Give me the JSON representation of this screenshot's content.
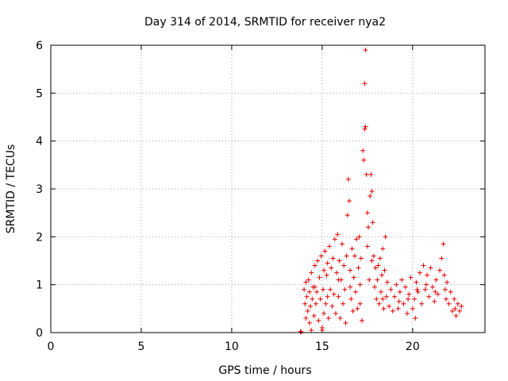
{
  "chart_data": {
    "type": "scatter",
    "title": "Day 314 of 2014, SRMTID for receiver nya2",
    "xlabel": "GPS time / hours",
    "ylabel": "SRMTID / TECUs",
    "xlim": [
      0,
      24
    ],
    "ylim": [
      0,
      6
    ],
    "xticks": [
      0,
      5,
      10,
      15,
      20
    ],
    "yticks": [
      0,
      1,
      2,
      3,
      4,
      5,
      6
    ],
    "grid": true,
    "marker": "+",
    "color": "#e00000",
    "series": [
      {
        "name": "nya2",
        "points": [
          [
            13.8,
            0.02
          ],
          [
            13.85,
            0.01
          ],
          [
            14.0,
            0.9
          ],
          [
            14.05,
            0.6
          ],
          [
            14.1,
            1.05
          ],
          [
            14.1,
            0.3
          ],
          [
            14.15,
            0.75
          ],
          [
            14.2,
            0.45
          ],
          [
            14.25,
            1.1
          ],
          [
            14.3,
            0.2
          ],
          [
            14.3,
            0.85
          ],
          [
            14.35,
            0.55
          ],
          [
            14.4,
            1.25
          ],
          [
            14.4,
            0.05
          ],
          [
            14.45,
            0.7
          ],
          [
            14.5,
            0.95
          ],
          [
            14.55,
            0.35
          ],
          [
            14.6,
            1.4
          ],
          [
            14.65,
            0.6
          ],
          [
            14.7,
            0.85
          ],
          [
            14.75,
            1.5
          ],
          [
            14.8,
            0.25
          ],
          [
            14.85,
            1.15
          ],
          [
            14.9,
            0.7
          ],
          [
            14.95,
            1.6
          ],
          [
            15.0,
            0.1
          ],
          [
            15.0,
            0.05
          ],
          [
            15.05,
            0.9
          ],
          [
            15.1,
            1.3
          ],
          [
            15.1,
            0.4
          ],
          [
            15.15,
            1.7
          ],
          [
            15.2,
            0.6
          ],
          [
            15.25,
            1.2
          ],
          [
            15.3,
            1.45
          ],
          [
            15.35,
            0.3
          ],
          [
            15.4,
            1.8
          ],
          [
            15.45,
            0.9
          ],
          [
            15.5,
            1.35
          ],
          [
            15.55,
            0.55
          ],
          [
            15.6,
            1.55
          ],
          [
            15.65,
            0.8
          ],
          [
            15.7,
            1.95
          ],
          [
            15.75,
            0.4
          ],
          [
            15.8,
            1.25
          ],
          [
            15.85,
            2.05
          ],
          [
            15.9,
            0.75
          ],
          [
            15.95,
            1.5
          ],
          [
            16.0,
            0.3
          ],
          [
            16.05,
            1.1
          ],
          [
            16.1,
            1.85
          ],
          [
            16.15,
            0.6
          ],
          [
            16.2,
            1.4
          ],
          [
            16.25,
            0.9
          ],
          [
            16.3,
            0.2
          ],
          [
            16.35,
            1.6
          ],
          [
            16.4,
            2.45
          ],
          [
            16.45,
            3.2
          ],
          [
            16.5,
            2.75
          ],
          [
            16.55,
            1.3
          ],
          [
            16.6,
            0.7
          ],
          [
            16.65,
            1.75
          ],
          [
            16.7,
            0.45
          ],
          [
            16.75,
            1.15
          ],
          [
            16.8,
            1.6
          ],
          [
            16.85,
            0.85
          ],
          [
            16.9,
            1.95
          ],
          [
            16.95,
            0.5
          ],
          [
            17.0,
            1.35
          ],
          [
            17.05,
            2.0
          ],
          [
            17.1,
            0.6
          ],
          [
            17.15,
            1.55
          ],
          [
            17.2,
            0.25
          ],
          [
            17.25,
            3.8
          ],
          [
            17.3,
            3.6
          ],
          [
            17.35,
            4.25
          ],
          [
            17.35,
            5.2
          ],
          [
            17.4,
            5.9
          ],
          [
            17.4,
            4.3
          ],
          [
            17.45,
            3.3
          ],
          [
            17.5,
            2.5
          ],
          [
            17.5,
            1.8
          ],
          [
            17.55,
            2.2
          ],
          [
            17.6,
            1.1
          ],
          [
            17.65,
            2.85
          ],
          [
            17.7,
            3.3
          ],
          [
            17.75,
            2.95
          ],
          [
            17.8,
            2.3
          ],
          [
            17.85,
            1.6
          ],
          [
            17.9,
            0.95
          ],
          [
            17.95,
            1.35
          ],
          [
            18.0,
            0.7
          ],
          [
            18.05,
            1.1
          ],
          [
            18.1,
            1.4
          ],
          [
            18.15,
            0.6
          ],
          [
            18.2,
            1.55
          ],
          [
            18.25,
            0.85
          ],
          [
            18.3,
            1.2
          ],
          [
            18.35,
            1.75
          ],
          [
            18.4,
            0.5
          ],
          [
            18.45,
            1.3
          ],
          [
            18.5,
            2.0
          ],
          [
            18.55,
            0.75
          ],
          [
            18.6,
            1.05
          ],
          [
            18.7,
            0.55
          ],
          [
            18.8,
            0.9
          ],
          [
            18.9,
            0.45
          ],
          [
            19.0,
            0.75
          ],
          [
            19.1,
            1.0
          ],
          [
            19.2,
            0.5
          ],
          [
            19.3,
            0.85
          ],
          [
            19.4,
            1.1
          ],
          [
            19.5,
            0.6
          ],
          [
            19.6,
            0.95
          ],
          [
            19.7,
            0.4
          ],
          [
            19.8,
            0.8
          ],
          [
            19.9,
            1.15
          ],
          [
            20.0,
            0.5
          ],
          [
            20.1,
            0.7
          ],
          [
            20.15,
            0.3
          ],
          [
            20.2,
            1.05
          ],
          [
            20.3,
            0.85
          ],
          [
            20.4,
            1.25
          ],
          [
            20.5,
            0.6
          ],
          [
            20.6,
            1.4
          ],
          [
            20.7,
            0.9
          ],
          [
            20.8,
            1.2
          ],
          [
            20.9,
            0.75
          ],
          [
            21.0,
            1.35
          ],
          [
            21.1,
            0.95
          ],
          [
            21.2,
            0.65
          ],
          [
            21.3,
            1.1
          ],
          [
            21.4,
            0.8
          ],
          [
            21.5,
            1.3
          ],
          [
            21.6,
            1.55
          ],
          [
            21.7,
            1.85
          ],
          [
            21.75,
            1.2
          ],
          [
            21.8,
            0.9
          ],
          [
            21.9,
            1.05
          ],
          [
            22.0,
            0.6
          ],
          [
            22.1,
            0.85
          ],
          [
            22.2,
            0.45
          ],
          [
            22.3,
            0.7
          ],
          [
            22.4,
            0.35
          ],
          [
            22.5,
            0.6
          ],
          [
            22.6,
            0.45
          ],
          [
            22.7,
            0.55
          ],
          [
            14.6,
            0.95
          ],
          [
            15.3,
            0.75
          ],
          [
            15.9,
            1.1
          ],
          [
            16.55,
            0.95
          ],
          [
            17.1,
            1.0
          ],
          [
            17.75,
            1.5
          ],
          [
            18.35,
            0.7
          ],
          [
            19.25,
            0.65
          ],
          [
            19.75,
            0.7
          ],
          [
            20.25,
            0.9
          ],
          [
            20.75,
            1.0
          ],
          [
            21.25,
            0.85
          ],
          [
            21.85,
            0.7
          ],
          [
            22.35,
            0.5
          ]
        ]
      }
    ]
  }
}
